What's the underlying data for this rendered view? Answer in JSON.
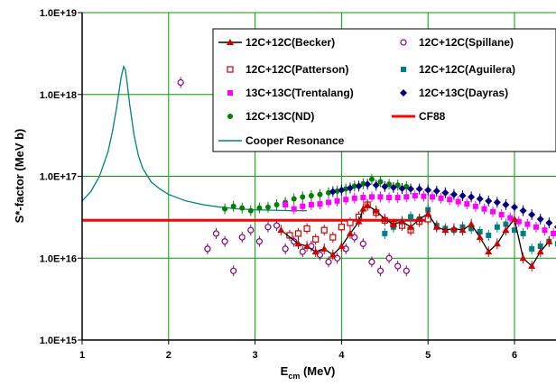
{
  "chart_data": {
    "type": "scatter",
    "title": "",
    "xlabel": "E",
    "xlabel_sub": "cm",
    "xlabel_unit": " (MeV)",
    "ylabel": "S*-factor (MeV b)",
    "xlim": [
      1,
      6.5
    ],
    "ylim": [
      1000000000000000.0,
      1e+19
    ],
    "yscale": "log",
    "grid": true,
    "grid_color": "#00a000",
    "x_ticks": [
      1,
      2,
      3,
      4,
      5,
      6
    ],
    "x_tick_labels": [
      "1",
      "2",
      "3",
      "4",
      "5",
      "6"
    ],
    "y_ticks": [
      1000000000000000.0,
      1e+16,
      1e+17,
      1e+18,
      1e+19
    ],
    "y_tick_labels": [
      "1.0E+15",
      "1.0E+16",
      "1.0E+17",
      "1.0E+18",
      "1.0E+19"
    ],
    "legend_position": "top-right",
    "series": [
      {
        "name": "12C+12C(Becker)",
        "color": "#000000",
        "marker": "triangle",
        "line": true,
        "marker_color": "#cc0000",
        "x": [
          3.3,
          3.5,
          3.6,
          3.7,
          3.8,
          3.9,
          4.0,
          4.1,
          4.2,
          4.25,
          4.3,
          4.4,
          4.5,
          4.6,
          4.7,
          4.8,
          4.9,
          5.0,
          5.1,
          5.2,
          5.3,
          5.4,
          5.5,
          5.6,
          5.7,
          5.8,
          5.9,
          6.0,
          6.1,
          6.2,
          6.3,
          6.4
        ],
        "y": [
          2.2e+16,
          1.5e+16,
          1.4e+16,
          1.2e+16,
          1.3e+16,
          1.1e+16,
          1.4e+16,
          2e+16,
          2.8e+16,
          4e+16,
          4.4e+16,
          3.8e+16,
          3e+16,
          2.6e+16,
          2.8e+16,
          2.4e+16,
          3e+16,
          3.5e+16,
          2.4e+16,
          2.2e+16,
          2.3e+16,
          2.2e+16,
          2.6e+16,
          1.8e+16,
          1.2e+16,
          1.5e+16,
          2.2e+16,
          3e+16,
          1e+16,
          8000000000000000.0,
          1.2e+16,
          1.6e+16
        ]
      },
      {
        "name": "12C+12C(Spillane)",
        "color": "#800080",
        "marker": "circle-open",
        "x": [
          2.14,
          2.45,
          2.55,
          2.65,
          2.75,
          2.85,
          2.95,
          3.05,
          3.15,
          3.25,
          3.35,
          3.45,
          3.55,
          3.65,
          3.75,
          3.85,
          3.95,
          4.05,
          4.15,
          4.25,
          4.35,
          4.45,
          4.55,
          4.65,
          4.75
        ],
        "y": [
          1.4e+18,
          1.3e+16,
          2e+16,
          1.6e+16,
          7000000000000000.0,
          1.8e+16,
          2.2e+16,
          1.6e+16,
          2.4e+16,
          2.5e+16,
          1.3e+16,
          1.6e+16,
          1.2e+16,
          1.4e+16,
          1.1e+16,
          9000000000000000.0,
          1e+16,
          1.3e+16,
          1.8e+16,
          1.5e+16,
          9000000000000000.0,
          7000000000000000.0,
          1e+16,
          8000000000000000.0,
          7000000000000000.0
        ]
      },
      {
        "name": "12C+12C(Patterson)",
        "color": "#cc0000",
        "marker": "square-open",
        "x": [
          3.4,
          3.5,
          3.6,
          3.7,
          3.8,
          3.9,
          4.0,
          4.1,
          4.2,
          4.3,
          4.4,
          4.5,
          4.6,
          4.7,
          4.8,
          4.9,
          5.0
        ],
        "y": [
          1.9e+16,
          2e+16,
          2.3e+16,
          1.7e+16,
          2.2e+16,
          1.8e+16,
          2.4e+16,
          2.7e+16,
          3.2e+16,
          4.5e+16,
          3.6e+16,
          2.9e+16,
          2.6e+16,
          2.5e+16,
          2.2e+16,
          2.8e+16,
          3e+16
        ]
      },
      {
        "name": "12C+12C(Aguilera)",
        "color": "#008080",
        "marker": "square",
        "x": [
          4.5,
          4.6,
          4.7,
          4.8,
          4.9,
          5.0,
          5.1,
          5.2,
          5.3,
          5.4,
          5.5,
          5.6,
          5.7,
          5.8,
          5.9,
          6.0,
          6.1,
          6.2,
          6.3,
          6.4,
          6.5
        ],
        "y": [
          2e+16,
          2.4e+16,
          2.8e+16,
          3.2e+16,
          3e+16,
          3.9e+16,
          2.5e+16,
          2.3e+16,
          2.2e+16,
          2.4e+16,
          2.3e+16,
          2.1e+16,
          1.9e+16,
          2.4e+16,
          2.6e+16,
          2.2e+16,
          2e+16,
          1.3e+16,
          1.4e+16,
          1.6e+16,
          1.5e+16
        ]
      },
      {
        "name": "13C+13C(Trentalang)",
        "color": "#ff00ff",
        "marker": "square",
        "x": [
          3.35,
          3.45,
          3.55,
          3.65,
          3.75,
          3.85,
          3.95,
          4.05,
          4.15,
          4.25,
          4.35,
          4.45,
          4.55,
          4.65,
          4.75,
          4.85,
          4.95,
          5.05,
          5.15,
          5.25,
          5.35,
          5.45,
          5.55,
          5.65,
          5.75,
          5.85,
          5.95,
          6.05,
          6.15,
          6.25,
          6.35,
          6.45
        ],
        "y": [
          4.5e+16,
          4e+16,
          4.3e+16,
          4.5e+16,
          4.6e+16,
          4.8e+16,
          5e+16,
          5.2e+16,
          5.4e+16,
          5.5e+16,
          5.6e+16,
          5.6e+16,
          5.5e+16,
          5.5e+16,
          5.6e+16,
          5.8e+16,
          5.7e+16,
          5.6e+16,
          5.4e+16,
          5.2e+16,
          4.9e+16,
          4.6e+16,
          4.3e+16,
          4e+16,
          3.7e+16,
          3.4e+16,
          3.1e+16,
          2.8e+16,
          2.6e+16,
          2.4e+16,
          2.2e+16,
          2e+16
        ]
      },
      {
        "name": "12C+13C(Dayras)",
        "color": "#000080",
        "marker": "diamond",
        "x": [
          3.9,
          4.0,
          4.1,
          4.2,
          4.3,
          4.4,
          4.5,
          4.6,
          4.7,
          4.8,
          4.9,
          5.0,
          5.1,
          5.2,
          5.3,
          5.4,
          5.5,
          5.6,
          5.7,
          5.8,
          5.9,
          6.0,
          6.1,
          6.2,
          6.3,
          6.4,
          6.5
        ],
        "y": [
          6.5e+16,
          6.8e+16,
          7.2e+16,
          7.6e+16,
          8e+16,
          7.8e+16,
          7.5e+16,
          7.3e+16,
          7.1e+16,
          7e+16,
          7e+16,
          6.8e+16,
          6.6e+16,
          6.3e+16,
          6e+16,
          5.8e+16,
          5.6e+16,
          5.3e+16,
          5e+16,
          4.8e+16,
          4.5e+16,
          4.2e+16,
          3.8e+16,
          3.4e+16,
          3e+16,
          2.7e+16,
          2.4e+16
        ]
      },
      {
        "name": "12C+13C(ND)",
        "color": "#008000",
        "marker": "circle",
        "x": [
          2.65,
          2.75,
          2.85,
          2.95,
          3.05,
          3.15,
          3.25,
          3.35,
          3.45,
          3.55,
          3.65,
          3.75,
          3.85,
          3.95,
          4.05,
          4.15,
          4.25,
          4.35,
          4.45,
          4.55,
          4.65,
          4.75
        ],
        "y": [
          4e+16,
          4.3e+16,
          4.1e+16,
          3.8e+16,
          4.1e+16,
          4.2e+16,
          4.5e+16,
          4.8e+16,
          5.3e+16,
          5.6e+16,
          5.8e+16,
          6e+16,
          6.3e+16,
          6.6e+16,
          7e+16,
          7.6e+16,
          8.1e+16,
          9.2e+16,
          8.6e+16,
          8e+16,
          7.8e+16,
          7.5e+16
        ]
      },
      {
        "name": "CF88",
        "color": "#ff0000",
        "marker": "none",
        "line": true,
        "line_width": 3,
        "x": [
          1.0,
          5.0
        ],
        "y": [
          2.9e+16,
          2.9e+16
        ]
      },
      {
        "name": "Cooper Resonance",
        "color": "#008080",
        "marker": "none",
        "line": true,
        "x": [
          1.0,
          1.1,
          1.2,
          1.3,
          1.35,
          1.4,
          1.45,
          1.48,
          1.5,
          1.52,
          1.55,
          1.6,
          1.65,
          1.7,
          1.8,
          1.9,
          2.0,
          2.2,
          2.4,
          2.6,
          2.8,
          3.0,
          3.2,
          3.4,
          3.6
        ],
        "y": [
          5e+16,
          6.5e+16,
          1e+17,
          2e+17,
          3.5e+17,
          7e+17,
          1.6e+18,
          2.2e+18,
          2e+18,
          1.4e+18,
          7.5e+17,
          3.2e+17,
          1.8e+17,
          1.25e+17,
          8.5e+16,
          7e+16,
          6e+16,
          5e+16,
          4.5e+16,
          4.2e+16,
          4e+16,
          3.9e+16,
          3.85e+16,
          3.8e+16,
          3.8e+16
        ]
      }
    ]
  }
}
